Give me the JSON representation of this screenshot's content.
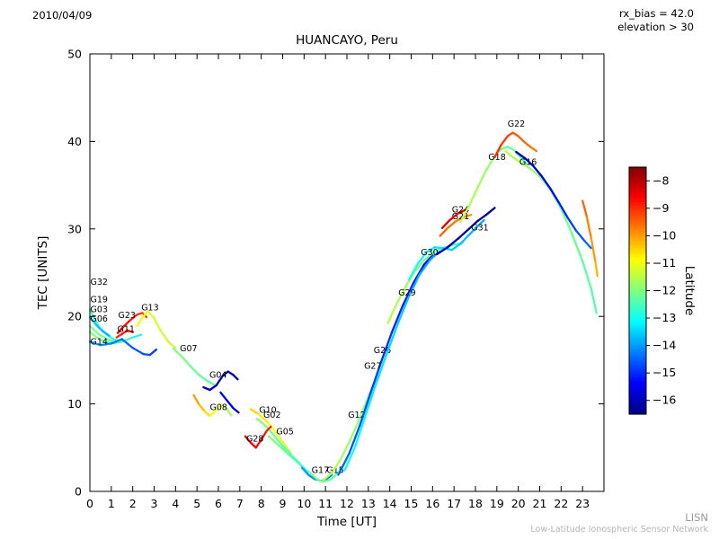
{
  "header": {
    "date": "2010/04/09",
    "rx_bias": "rx_bias = 42.0",
    "elevation": "elevation > 30"
  },
  "footer": {
    "org_abbrev": "LISN",
    "org_name": "Low-Latitude Ionospheric Sensor Network"
  },
  "chart_data": {
    "type": "line",
    "title": "HUANCAYO, Peru",
    "xlabel": "Time [UT]",
    "ylabel": "TEC [UNITS]",
    "xlim": [
      0,
      24
    ],
    "ylim": [
      0,
      50
    ],
    "xticks": [
      0,
      1,
      2,
      3,
      4,
      5,
      6,
      7,
      8,
      9,
      10,
      11,
      12,
      13,
      14,
      15,
      16,
      17,
      18,
      19,
      20,
      21,
      22,
      23
    ],
    "yticks": [
      0,
      10,
      20,
      30,
      40,
      50
    ],
    "grid": false,
    "colorbar": {
      "label": "Latitude",
      "ticks": [
        -8,
        -9,
        -10,
        -11,
        -12,
        -13,
        -14,
        -15,
        -16
      ],
      "tick_labels": [
        "−8",
        "−9",
        "−10",
        "−11",
        "−12",
        "−13",
        "−14",
        "−15",
        "−16"
      ],
      "range": [
        -7.5,
        -16.5
      ],
      "colormap": "jet"
    },
    "series": [
      {
        "name": "G32",
        "lat": [
          -12.5,
          -13
        ],
        "label_at": [
          0.02,
          23.6
        ],
        "points": [
          [
            0.0,
            20.8
          ],
          [
            0.25,
            19.6
          ],
          [
            0.5,
            18.6
          ],
          [
            0.8,
            17.9
          ],
          [
            1.1,
            17.4
          ],
          [
            1.4,
            17.1
          ]
        ]
      },
      {
        "name": "G19",
        "lat": [
          -13.5,
          -14
        ],
        "label_at": [
          0.02,
          21.6
        ],
        "points": [
          [
            0.0,
            19.9
          ],
          [
            0.3,
            19.0
          ],
          [
            0.6,
            18.3
          ],
          [
            0.9,
            17.8
          ]
        ]
      },
      {
        "name": "G03",
        "lat": [
          -12,
          -12.5
        ],
        "label_at": [
          0.02,
          20.5
        ],
        "points": [
          [
            0.0,
            18.9
          ],
          [
            0.4,
            18.0
          ],
          [
            0.8,
            17.4
          ],
          [
            1.2,
            17.0
          ],
          [
            1.6,
            17.2
          ]
        ]
      },
      {
        "name": "G06",
        "lat": [
          -12,
          -13
        ],
        "label_at": [
          0.02,
          19.4
        ],
        "points": [
          [
            0.0,
            18.2
          ],
          [
            0.5,
            17.3
          ],
          [
            1.0,
            16.9
          ],
          [
            1.5,
            17.1
          ],
          [
            2.0,
            17.6
          ],
          [
            2.4,
            17.9
          ]
        ]
      },
      {
        "name": "G14",
        "lat": [
          -14,
          -15
        ],
        "label_at": [
          0.02,
          16.8
        ],
        "points": [
          [
            0.0,
            17.1
          ],
          [
            0.5,
            16.7
          ],
          [
            1.0,
            16.9
          ],
          [
            1.5,
            17.4
          ],
          [
            2.0,
            16.4
          ],
          [
            2.5,
            15.7
          ],
          [
            2.8,
            15.6
          ],
          [
            3.1,
            16.2
          ]
        ]
      },
      {
        "name": "G23",
        "lat": [
          -8.5,
          -9.5
        ],
        "label_at": [
          1.32,
          19.8
        ],
        "points": [
          [
            1.3,
            18.1
          ],
          [
            1.6,
            18.9
          ],
          [
            1.9,
            19.6
          ],
          [
            2.2,
            20.2
          ],
          [
            2.45,
            20.4
          ],
          [
            2.65,
            19.9
          ]
        ]
      },
      {
        "name": "G11",
        "lat": [
          -9,
          -8.5
        ],
        "label_at": [
          1.28,
          18.2
        ],
        "points": [
          [
            1.25,
            17.6
          ],
          [
            1.5,
            18.0
          ],
          [
            1.75,
            18.4
          ],
          [
            2.0,
            18.2
          ]
        ]
      },
      {
        "name": "G13",
        "lat": [
          -11,
          -11.5
        ],
        "label_at": [
          2.4,
          20.7
        ],
        "points": [
          [
            2.2,
            18.9
          ],
          [
            2.5,
            20.0
          ],
          [
            2.7,
            20.6
          ],
          [
            3.0,
            19.8
          ],
          [
            3.3,
            18.4
          ],
          [
            3.7,
            17.0
          ],
          [
            4.0,
            16.4
          ]
        ]
      },
      {
        "name": "G07",
        "lat": [
          -12,
          -12.5
        ],
        "label_at": [
          4.2,
          16.0
        ],
        "points": [
          [
            3.9,
            16.3
          ],
          [
            4.3,
            15.4
          ],
          [
            4.7,
            14.3
          ],
          [
            5.1,
            13.3
          ],
          [
            5.5,
            12.6
          ],
          [
            5.8,
            12.2
          ]
        ]
      },
      {
        "name": "G04",
        "lat": [
          -16,
          -16.3
        ],
        "label_at": [
          5.58,
          13.0
        ],
        "points": [
          [
            5.3,
            11.9
          ],
          [
            5.6,
            11.6
          ],
          [
            5.9,
            12.1
          ],
          [
            6.2,
            13.2
          ],
          [
            6.45,
            13.7
          ],
          [
            6.7,
            13.3
          ],
          [
            6.9,
            12.8
          ]
        ]
      },
      {
        "name": "G08",
        "lat": [
          -10,
          -12
        ],
        "label_at": [
          5.6,
          9.3
        ],
        "points": [
          [
            4.85,
            11.0
          ],
          [
            5.1,
            9.9
          ],
          [
            5.35,
            9.2
          ],
          [
            5.6,
            8.6
          ],
          [
            5.9,
            9.3
          ],
          [
            6.15,
            9.9
          ],
          [
            6.4,
            9.4
          ],
          [
            6.6,
            8.7
          ]
        ]
      },
      {
        "name": "",
        "lat": [
          -15.5,
          -16
        ],
        "label_at": null,
        "points": [
          [
            6.1,
            11.3
          ],
          [
            6.4,
            10.4
          ],
          [
            6.7,
            9.5
          ],
          [
            6.95,
            9.0
          ]
        ]
      },
      {
        "name": "G10",
        "lat": [
          -10.5,
          -11.5
        ],
        "label_at": [
          7.9,
          9.0
        ],
        "points": [
          [
            7.5,
            9.4
          ],
          [
            7.9,
            8.8
          ],
          [
            8.3,
            7.9
          ],
          [
            8.7,
            6.7
          ],
          [
            9.1,
            5.3
          ],
          [
            9.4,
            4.3
          ]
        ]
      },
      {
        "name": "G02",
        "lat": [
          -12,
          -12.5
        ],
        "label_at": [
          8.1,
          8.4
        ],
        "points": [
          [
            7.8,
            8.3
          ],
          [
            8.2,
            7.5
          ],
          [
            8.6,
            6.4
          ],
          [
            9.0,
            5.2
          ],
          [
            9.5,
            3.9
          ],
          [
            9.8,
            3.2
          ]
        ]
      },
      {
        "name": "G05",
        "lat": [
          -12,
          -13
        ],
        "label_at": [
          8.7,
          6.5
        ],
        "points": [
          [
            8.35,
            6.3
          ],
          [
            8.8,
            5.3
          ],
          [
            9.3,
            4.2
          ],
          [
            9.8,
            3.1
          ],
          [
            10.2,
            2.2
          ]
        ]
      },
      {
        "name": "G28",
        "lat": [
          -8.5,
          -9
        ],
        "label_at": [
          7.3,
          5.7
        ],
        "points": [
          [
            7.25,
            6.3
          ],
          [
            7.5,
            5.6
          ],
          [
            7.75,
            5.0
          ],
          [
            8.0,
            5.9
          ],
          [
            8.25,
            6.9
          ],
          [
            8.45,
            7.4
          ]
        ]
      },
      {
        "name": "G17",
        "lat": [
          -14,
          -14.5
        ],
        "label_at": [
          10.35,
          2.1
        ],
        "points": [
          [
            9.9,
            2.7
          ],
          [
            10.2,
            1.9
          ],
          [
            10.5,
            1.4
          ],
          [
            10.8,
            1.2
          ],
          [
            11.1,
            1.5
          ],
          [
            11.3,
            1.9
          ]
        ]
      },
      {
        "name": "G15",
        "lat": [
          -12,
          -12.5
        ],
        "label_at": [
          11.05,
          2.1
        ],
        "points": [
          [
            10.3,
            2.1
          ],
          [
            10.6,
            1.4
          ],
          [
            10.9,
            1.1
          ],
          [
            11.2,
            1.3
          ],
          [
            11.5,
            1.9
          ],
          [
            11.75,
            2.6
          ]
        ]
      },
      {
        "name": "G12",
        "lat": [
          -11.5,
          -12
        ],
        "label_at": [
          12.05,
          8.4
        ],
        "points": [
          [
            10.9,
            1.3
          ],
          [
            11.3,
            2.1
          ],
          [
            11.7,
            3.6
          ],
          [
            12.1,
            5.6
          ],
          [
            12.5,
            7.8
          ],
          [
            12.9,
            10.2
          ],
          [
            13.2,
            12.0
          ]
        ]
      },
      {
        "name": "G26",
        "lat": [
          -14.5,
          -15.5
        ],
        "label_at": [
          13.25,
          15.8
        ],
        "points": [
          [
            11.6,
            1.9
          ],
          [
            12.1,
            4.3
          ],
          [
            12.6,
            7.5
          ],
          [
            13.1,
            11.2
          ],
          [
            13.6,
            14.8
          ],
          [
            14.1,
            18.2
          ],
          [
            14.6,
            21.2
          ],
          [
            15.1,
            23.8
          ],
          [
            15.6,
            25.9
          ],
          [
            16.0,
            27.0
          ]
        ]
      },
      {
        "name": "G27",
        "lat": [
          -13,
          -14
        ],
        "label_at": [
          12.8,
          14.0
        ],
        "points": [
          [
            11.9,
            2.4
          ],
          [
            12.4,
            5.2
          ],
          [
            12.9,
            8.9
          ],
          [
            13.4,
            12.6
          ],
          [
            13.9,
            16.0
          ],
          [
            14.4,
            19.3
          ],
          [
            14.9,
            22.3
          ],
          [
            15.4,
            24.8
          ],
          [
            15.9,
            26.5
          ],
          [
            16.3,
            27.4
          ]
        ]
      },
      {
        "name": "G29",
        "lat": [
          -11.5,
          -12.5
        ],
        "label_at": [
          14.4,
          22.4
        ],
        "points": [
          [
            13.9,
            19.2
          ],
          [
            14.3,
            21.3
          ],
          [
            14.7,
            23.2
          ],
          [
            15.1,
            24.9
          ],
          [
            15.6,
            26.4
          ],
          [
            16.1,
            27.4
          ],
          [
            16.6,
            27.9
          ],
          [
            17.0,
            28.2
          ],
          [
            17.4,
            28.4
          ]
        ]
      },
      {
        "name": "G30",
        "lat": [
          -13,
          -14
        ],
        "label_at": [
          15.45,
          27.0
        ],
        "points": [
          [
            14.9,
            24.2
          ],
          [
            15.3,
            26.0
          ],
          [
            15.7,
            27.3
          ],
          [
            16.1,
            27.9
          ],
          [
            16.5,
            27.8
          ],
          [
            16.9,
            27.6
          ],
          [
            17.3,
            28.3
          ],
          [
            17.7,
            29.3
          ],
          [
            18.1,
            30.3
          ],
          [
            18.4,
            31.0
          ]
        ]
      },
      {
        "name": "G31",
        "lat": [
          -16,
          -16.4
        ],
        "label_at": [
          17.8,
          29.8
        ],
        "points": [
          [
            16.2,
            27.1
          ],
          [
            16.7,
            27.9
          ],
          [
            17.2,
            28.9
          ],
          [
            17.7,
            30.0
          ],
          [
            18.1,
            30.9
          ],
          [
            18.5,
            31.6
          ],
          [
            18.9,
            32.4
          ]
        ]
      },
      {
        "name": "G21",
        "lat": [
          -9.5,
          -10
        ],
        "label_at": [
          16.9,
          31.1
        ],
        "points": [
          [
            16.35,
            29.2
          ],
          [
            16.7,
            30.1
          ],
          [
            17.1,
            30.9
          ],
          [
            17.5,
            31.4
          ],
          [
            17.8,
            31.6
          ]
        ]
      },
      {
        "name": "G24",
        "lat": [
          -8.3,
          -8.8
        ],
        "label_at": [
          16.9,
          31.9
        ],
        "points": [
          [
            16.45,
            30.1
          ],
          [
            16.8,
            31.0
          ],
          [
            17.2,
            31.8
          ],
          [
            17.55,
            32.2
          ]
        ]
      },
      {
        "name": "G18",
        "lat": [
          -11.5,
          -12.5
        ],
        "label_at": [
          18.6,
          37.9
        ],
        "points": [
          [
            17.3,
            30.8
          ],
          [
            17.7,
            32.6
          ],
          [
            18.1,
            34.7
          ],
          [
            18.5,
            36.7
          ],
          [
            18.9,
            38.3
          ],
          [
            19.2,
            39.1
          ],
          [
            19.5,
            39.4
          ],
          [
            19.8,
            39.0
          ],
          [
            20.1,
            38.2
          ],
          [
            20.4,
            37.4
          ]
        ]
      },
      {
        "name": "G22",
        "lat": [
          -9,
          -9.8
        ],
        "label_at": [
          19.5,
          41.7
        ],
        "points": [
          [
            18.9,
            38.2
          ],
          [
            19.2,
            39.6
          ],
          [
            19.5,
            40.6
          ],
          [
            19.75,
            41.0
          ],
          [
            20.0,
            40.6
          ],
          [
            20.3,
            39.9
          ],
          [
            20.6,
            39.3
          ],
          [
            20.85,
            38.9
          ]
        ]
      },
      {
        "name": "G16",
        "lat": [
          -11.5,
          -12.5
        ],
        "label_at": [
          20.05,
          37.3
        ],
        "points": [
          [
            19.4,
            38.9
          ],
          [
            19.7,
            38.3
          ],
          [
            20.1,
            37.6
          ],
          [
            20.5,
            37.0
          ],
          [
            21.0,
            36.0
          ],
          [
            21.5,
            34.5
          ],
          [
            22.0,
            32.3
          ],
          [
            22.5,
            29.5
          ],
          [
            23.0,
            26.3
          ],
          [
            23.4,
            23.2
          ],
          [
            23.65,
            20.4
          ]
        ]
      },
      {
        "name": "",
        "lat": [
          -16.2,
          -14.2
        ],
        "label_at": null,
        "points": [
          [
            19.9,
            38.8
          ],
          [
            20.3,
            38.1
          ],
          [
            20.7,
            37.2
          ],
          [
            21.1,
            36.0
          ],
          [
            21.5,
            34.6
          ],
          [
            21.9,
            33.0
          ],
          [
            22.3,
            31.3
          ],
          [
            22.7,
            29.8
          ],
          [
            23.1,
            28.6
          ],
          [
            23.4,
            27.8
          ]
        ]
      },
      {
        "name": "",
        "lat": [
          -9.5,
          -10.5
        ],
        "label_at": null,
        "points": [
          [
            23.0,
            33.2
          ],
          [
            23.2,
            31.4
          ],
          [
            23.4,
            29.0
          ],
          [
            23.6,
            26.2
          ],
          [
            23.7,
            24.6
          ]
        ]
      }
    ]
  }
}
